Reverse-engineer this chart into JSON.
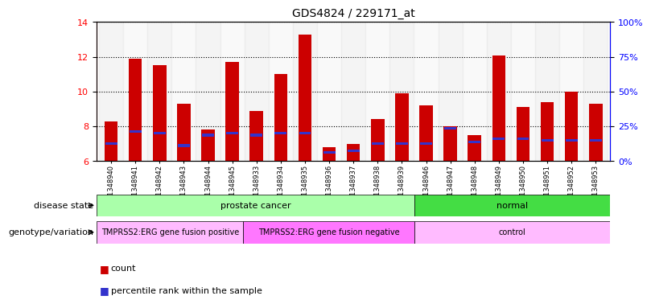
{
  "title": "GDS4824 / 229171_at",
  "samples": [
    "GSM1348940",
    "GSM1348941",
    "GSM1348942",
    "GSM1348943",
    "GSM1348944",
    "GSM1348945",
    "GSM1348933",
    "GSM1348934",
    "GSM1348935",
    "GSM1348936",
    "GSM1348937",
    "GSM1348938",
    "GSM1348939",
    "GSM1348946",
    "GSM1348947",
    "GSM1348948",
    "GSM1348949",
    "GSM1348950",
    "GSM1348951",
    "GSM1348952",
    "GSM1348953"
  ],
  "counts": [
    8.3,
    11.9,
    11.5,
    9.3,
    7.8,
    11.7,
    8.9,
    11.0,
    13.3,
    6.8,
    7.0,
    8.4,
    9.9,
    9.2,
    8.0,
    7.5,
    12.1,
    9.1,
    9.4,
    10.0,
    9.3
  ],
  "percentile_ranks": [
    7.0,
    7.7,
    7.6,
    6.9,
    7.5,
    7.6,
    7.5,
    7.6,
    7.6,
    6.5,
    6.6,
    7.0,
    7.0,
    7.0,
    7.9,
    7.1,
    7.3,
    7.3,
    7.2,
    7.2,
    7.2
  ],
  "ylim_left": [
    6,
    14
  ],
  "ylim_right": [
    0,
    100
  ],
  "yticks_left": [
    6,
    8,
    10,
    12,
    14
  ],
  "yticks_right": [
    0,
    25,
    50,
    75,
    100
  ],
  "bar_color": "#cc0000",
  "marker_color": "#3333cc",
  "disease_state_groups": [
    {
      "label": "prostate cancer",
      "start": 0,
      "end": 13,
      "color": "#aaffaa"
    },
    {
      "label": "normal",
      "start": 13,
      "end": 21,
      "color": "#44dd44"
    }
  ],
  "genotype_groups": [
    {
      "label": "TMPRSS2:ERG gene fusion positive",
      "start": 0,
      "end": 6,
      "color": "#ffbbff"
    },
    {
      "label": "TMPRSS2:ERG gene fusion negative",
      "start": 6,
      "end": 13,
      "color": "#ff77ff"
    },
    {
      "label": "control",
      "start": 13,
      "end": 21,
      "color": "#ffbbff"
    }
  ],
  "disease_state_label": "disease state",
  "genotype_label": "genotype/variation",
  "legend_count": "count",
  "legend_percentile": "percentile rank within the sample"
}
